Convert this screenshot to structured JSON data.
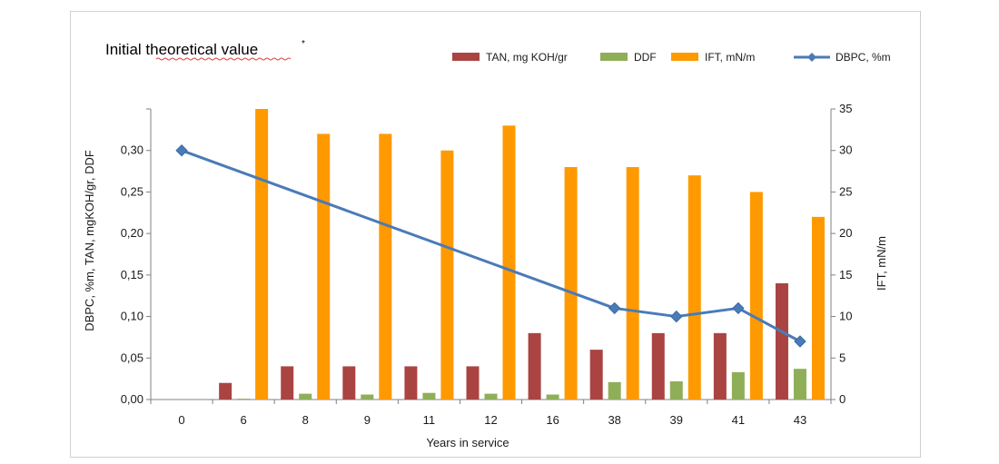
{
  "chart_data": {
    "type": "bar",
    "title": "Initial theoretical value",
    "title_superscript": "*",
    "xlabel": "Years in service",
    "ylabel": "DBPC, %m, TAN, mgKOH/gr, DDF",
    "ylabel_right": "IFT, mN/m",
    "categories": [
      "0",
      "6",
      "8",
      "9",
      "11",
      "12",
      "16",
      "38",
      "39",
      "41",
      "43"
    ],
    "ylim": [
      0,
      0.35
    ],
    "yticks": [
      "0,00",
      "0,05",
      "0,10",
      "0,15",
      "0,20",
      "0,25",
      "0,30"
    ],
    "ylim_right": [
      0,
      35
    ],
    "yticks_right": [
      "0",
      "5",
      "10",
      "15",
      "20",
      "25",
      "30",
      "35"
    ],
    "legend_position": "top-right",
    "series": [
      {
        "name": "TAN, mg KOH/gr",
        "type": "bar",
        "axis": "left",
        "color": "#a94442",
        "values": [
          0,
          0.02,
          0.04,
          0.04,
          0.04,
          0.04,
          0.08,
          0.06,
          0.08,
          0.08,
          0.14
        ]
      },
      {
        "name": "DDF",
        "type": "bar",
        "axis": "left",
        "color": "#8fae58",
        "values": [
          0,
          0.001,
          0.007,
          0.006,
          0.008,
          0.007,
          0.006,
          0.021,
          0.022,
          0.033,
          0.037
        ]
      },
      {
        "name": "IFT, mN/m",
        "type": "bar",
        "axis": "right",
        "color": "#ff9900",
        "values": [
          null,
          35,
          32,
          32,
          30,
          33,
          28,
          28,
          27,
          25,
          22
        ]
      },
      {
        "name": "DBPC, %m",
        "type": "line",
        "axis": "left",
        "color": "#4a7bb7",
        "points": [
          {
            "x": "0",
            "y": 0.3
          },
          {
            "x": "38",
            "y": 0.11
          },
          {
            "x": "39",
            "y": 0.1
          },
          {
            "x": "41",
            "y": 0.11
          },
          {
            "x": "43",
            "y": 0.07
          }
        ]
      }
    ]
  }
}
